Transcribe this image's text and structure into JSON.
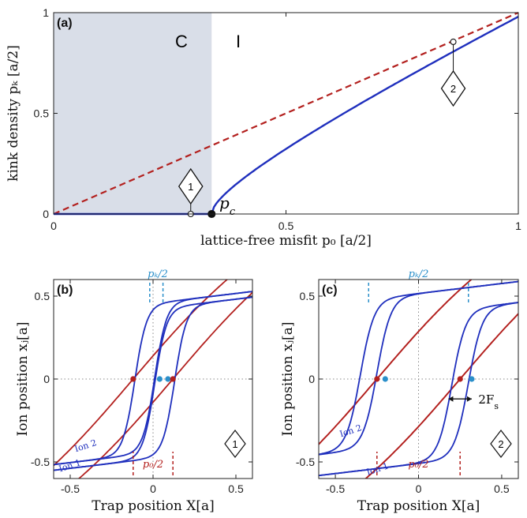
{
  "colors": {
    "kink": "#1f2fbd",
    "free": "#b3201e",
    "pk_marker": "#2a8fca",
    "shade": "#d9dee8",
    "point": "#111111",
    "guide": "#888888"
  },
  "chart_data": [
    {
      "type": "line",
      "panel_label": "(a)",
      "xlabel": "lattice-free misfit p₀ [a/2]",
      "ylabel": "kink density pₖ [a/2]",
      "xlim": [
        0,
        1
      ],
      "ylim": [
        0,
        1
      ],
      "x_ticks": [
        "0",
        "0.5",
        "1"
      ],
      "y_ticks": [
        "0",
        "0.5",
        "1"
      ],
      "regions": [
        {
          "label": "C",
          "x_range": [
            0,
            0.34
          ]
        },
        {
          "label": "I",
          "x_range": [
            0.34,
            1
          ]
        }
      ],
      "annotations": {
        "pc_label": "p",
        "pc_sub": "c",
        "pc_x": 0.34,
        "marker1": "1",
        "marker1_x": 0.295,
        "marker2": "2",
        "marker2_x": 0.86
      },
      "series": [
        {
          "style": "solid",
          "color": "kink",
          "x": [
            0,
            0.34,
            0.342,
            0.35,
            0.37,
            0.4,
            0.45,
            0.5,
            0.55,
            0.6,
            0.7,
            0.8,
            0.9,
            1.0
          ],
          "y": [
            0,
            0,
            0.07,
            0.13,
            0.19,
            0.25,
            0.32,
            0.38,
            0.44,
            0.5,
            0.61,
            0.72,
            0.85,
            0.98
          ]
        },
        {
          "style": "dashed",
          "color": "free",
          "x": [
            0,
            1.0
          ],
          "y": [
            0,
            1.0
          ]
        }
      ],
      "points": [
        {
          "x": 0.34,
          "y": 0,
          "fill": "point"
        },
        {
          "x": 0.295,
          "y": 0,
          "fill": "open"
        },
        {
          "x": 0.86,
          "y": 0.855,
          "fill": "open"
        }
      ]
    },
    {
      "type": "line",
      "panel_label": "(b)",
      "xlabel": "Trap position X[a]",
      "ylabel": "Ion position xⱼ[a]",
      "xlim": [
        -0.6,
        0.6
      ],
      "ylim": [
        -0.6,
        0.6
      ],
      "x_ticks": [
        "-0.5",
        "0",
        "0.5"
      ],
      "y_ticks": [
        "-0.5",
        "0",
        "0.5"
      ],
      "top_label": "pₖ/2",
      "bottom_label": "p₀/2",
      "ion1_label": "Ion 1",
      "ion2_label": "Ion 2",
      "marker": "1",
      "p0_half": 0.12,
      "pk_half": 0.04
    },
    {
      "type": "line",
      "panel_label": "(c)",
      "xlabel": "Trap position X[a]",
      "ylabel": "Ion position xⱼ[a]",
      "xlim": [
        -0.6,
        0.6
      ],
      "ylim": [
        -0.6,
        0.6
      ],
      "x_ticks": [
        "-0.5",
        "0",
        "0.5"
      ],
      "y_ticks": [
        "-0.5",
        "0",
        "0.5"
      ],
      "top_label": "pₖ/2",
      "bottom_label": "p₀/2",
      "ion1_label": "Ion 1",
      "ion2_label": "Ion 2",
      "marker": "2",
      "force_label": "2F",
      "force_sub": "s",
      "p0_half": 0.25,
      "pk_half": 0.3
    }
  ]
}
